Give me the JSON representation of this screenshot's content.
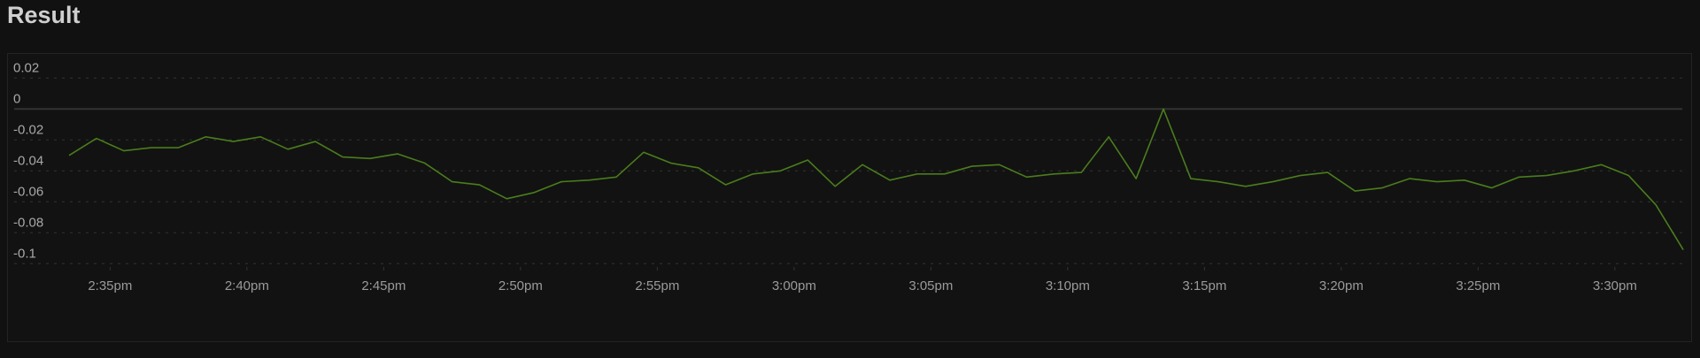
{
  "title": "Result",
  "chart_data": {
    "type": "line",
    "title": "",
    "xlabel": "",
    "ylabel": "",
    "ylim": [
      -0.1,
      0.02
    ],
    "yticks": [
      0.02,
      0,
      -0.02,
      -0.04,
      -0.06,
      -0.08,
      -0.1
    ],
    "ytick_labels": [
      "0.02",
      "0",
      "-0.02",
      "-0.04",
      "-0.06",
      "-0.08",
      "-0.1"
    ],
    "xticks": [
      "14:35",
      "14:40",
      "14:45",
      "14:50",
      "14:55",
      "15:00",
      "15:05",
      "15:10",
      "15:15",
      "15:20",
      "15:25",
      "15:30"
    ],
    "xtick_labels": [
      "2:35pm",
      "2:40pm",
      "2:45pm",
      "2:50pm",
      "2:55pm",
      "3:00pm",
      "3:05pm",
      "3:10pm",
      "3:15pm",
      "3:20pm",
      "3:25pm",
      "3:30pm"
    ],
    "grid": true,
    "line_color": "#4a7d1c",
    "series": [
      {
        "x_start": "14:33:30",
        "x_step_minutes": 1,
        "values": [
          -0.03,
          -0.019,
          -0.027,
          -0.025,
          -0.025,
          -0.018,
          -0.021,
          -0.018,
          -0.026,
          -0.021,
          -0.031,
          -0.032,
          -0.029,
          -0.035,
          -0.047,
          -0.049,
          -0.058,
          -0.054,
          -0.047,
          -0.046,
          -0.044,
          -0.028,
          -0.035,
          -0.038,
          -0.049,
          -0.042,
          -0.04,
          -0.033,
          -0.05,
          -0.036,
          -0.046,
          -0.042,
          -0.042,
          -0.037,
          -0.036,
          -0.044,
          -0.042,
          -0.041,
          -0.018,
          -0.045,
          0.0,
          -0.045,
          -0.047,
          -0.05,
          -0.047,
          -0.043,
          -0.041,
          -0.053,
          -0.051,
          -0.045,
          -0.047,
          -0.046,
          -0.051,
          -0.044,
          -0.043,
          -0.04,
          -0.036,
          -0.043,
          -0.062,
          -0.091
        ]
      }
    ]
  }
}
